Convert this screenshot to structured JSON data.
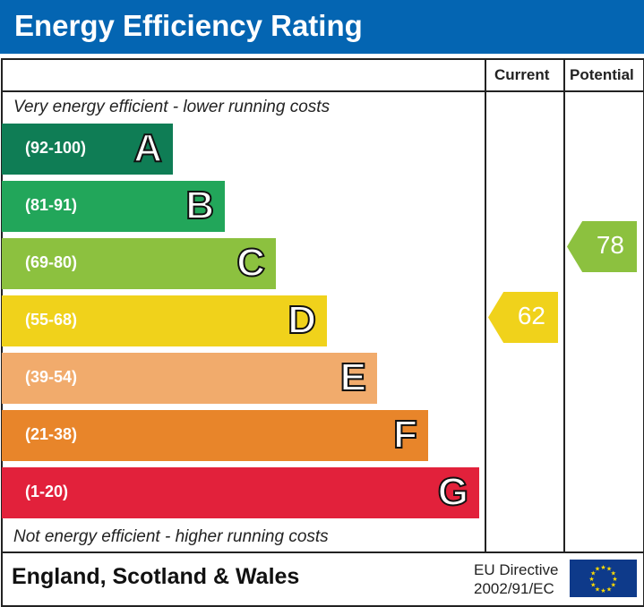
{
  "title": "Energy Efficiency Rating",
  "chart_data": {
    "type": "bar",
    "title": "Energy Efficiency Rating",
    "columns": [
      "Current",
      "Potential"
    ],
    "top_note": "Very energy efficient - lower running costs",
    "bottom_note": "Not energy efficient - higher running costs",
    "bands": [
      {
        "letter": "A",
        "range": "(92-100)",
        "color": "#0f7d55"
      },
      {
        "letter": "B",
        "range": "(81-91)",
        "color": "#22a65a"
      },
      {
        "letter": "C",
        "range": "(69-80)",
        "color": "#8cc13f"
      },
      {
        "letter": "D",
        "range": "(55-68)",
        "color": "#f0d21b"
      },
      {
        "letter": "E",
        "range": "(39-54)",
        "color": "#f1ab6c"
      },
      {
        "letter": "F",
        "range": "(21-38)",
        "color": "#e8852a"
      },
      {
        "letter": "G",
        "range": "(1-20)",
        "color": "#e2213b"
      }
    ],
    "current": {
      "value": "62",
      "band": "D",
      "color": "#f0d21b"
    },
    "potential": {
      "value": "78",
      "band": "C",
      "color": "#8cc13f"
    }
  },
  "footer": {
    "region": "England, Scotland & Wales",
    "directive_line1": "EU Directive",
    "directive_line2": "2002/91/EC"
  }
}
